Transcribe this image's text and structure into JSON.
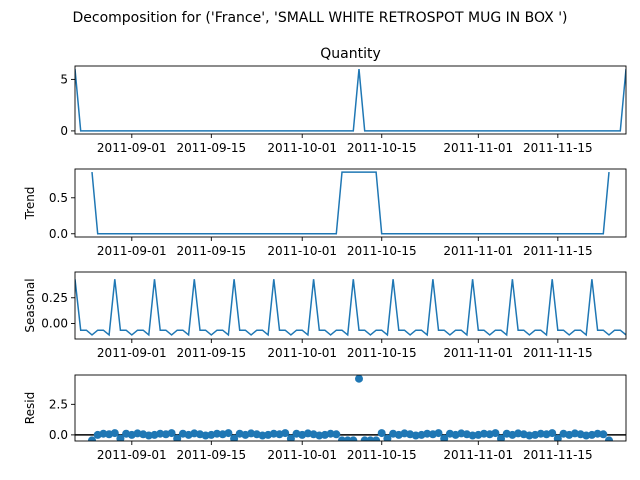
{
  "figure": {
    "title": "Decomposition for ('France', 'SMALL WHITE RETROSPOT MUG IN BOX ')"
  },
  "colors": {
    "series": "#1f77b4",
    "axis": "#000000",
    "background": "#ffffff"
  },
  "chart_data": [
    {
      "type": "line",
      "title": "Quantity",
      "xlabel": "",
      "ylabel": "",
      "x_start": "2011-08-22",
      "x_end": "2011-11-27",
      "xticks": [
        "2011-09-01",
        "2011-09-15",
        "2011-10-01",
        "2011-10-15",
        "2011-11-01",
        "2011-11-15"
      ],
      "ylim": [
        -0.3,
        6.3
      ],
      "yticks": [
        0,
        5
      ],
      "points": [
        {
          "x": "2011-08-22",
          "y": 6
        },
        {
          "x": "2011-08-23",
          "y": 0
        },
        {
          "x": "2011-10-10",
          "y": 0
        },
        {
          "x": "2011-10-11",
          "y": 6
        },
        {
          "x": "2011-10-12",
          "y": 0
        },
        {
          "x": "2011-11-26",
          "y": 0
        },
        {
          "x": "2011-11-27",
          "y": 6
        }
      ]
    },
    {
      "type": "line",
      "title": "",
      "xlabel": "",
      "ylabel": "Trend",
      "x_start": "2011-08-22",
      "x_end": "2011-11-27",
      "xticks": [
        "2011-09-01",
        "2011-09-15",
        "2011-10-01",
        "2011-10-15",
        "2011-11-01",
        "2011-11-15"
      ],
      "ylim": [
        -0.045,
        0.9
      ],
      "yticks": [
        0,
        0.5
      ],
      "ytick_labels": [
        "0.0",
        "0.5"
      ],
      "points": [
        {
          "x": "2011-08-25",
          "y": 0.857
        },
        {
          "x": "2011-08-26",
          "y": 0
        },
        {
          "x": "2011-10-07",
          "y": 0
        },
        {
          "x": "2011-10-08",
          "y": 0.857
        },
        {
          "x": "2011-10-14",
          "y": 0.857
        },
        {
          "x": "2011-10-15",
          "y": 0
        },
        {
          "x": "2011-11-23",
          "y": 0
        },
        {
          "x": "2011-11-24",
          "y": 0.857
        }
      ]
    },
    {
      "type": "line",
      "title": "",
      "xlabel": "",
      "ylabel": "Seasonal",
      "x_start": "2011-08-22",
      "x_end": "2011-11-27",
      "xticks": [
        "2011-09-01",
        "2011-09-15",
        "2011-10-01",
        "2011-10-15",
        "2011-11-01",
        "2011-11-15"
      ],
      "ylim": [
        -0.15,
        0.5
      ],
      "yticks": [
        0,
        0.25
      ],
      "ytick_labels": [
        "0.00",
        "0.25"
      ],
      "period_days": 7,
      "weekly_pattern": [
        0.43,
        -0.065,
        -0.065,
        -0.11,
        -0.065,
        -0.065,
        -0.11
      ]
    },
    {
      "type": "scatter",
      "title": "",
      "xlabel": "",
      "ylabel": "Resid",
      "x_start": "2011-08-22",
      "x_end": "2011-11-27",
      "xticks": [
        "2011-09-01",
        "2011-09-15",
        "2011-10-01",
        "2011-10-15",
        "2011-11-01",
        "2011-11-15"
      ],
      "ylim": [
        -0.5,
        4.9
      ],
      "yticks": [
        0,
        2.5
      ],
      "ytick_labels": [
        "0.0",
        "2.5"
      ],
      "zero_line": true,
      "outliers": [
        {
          "x": "2011-08-25",
          "y": -0.45
        },
        {
          "x": "2011-10-08",
          "y": -0.45
        },
        {
          "x": "2011-10-09",
          "y": -0.45
        },
        {
          "x": "2011-10-10",
          "y": -0.45
        },
        {
          "x": "2011-10-11",
          "y": 4.6
        },
        {
          "x": "2011-10-12",
          "y": -0.45
        },
        {
          "x": "2011-10-13",
          "y": -0.45
        },
        {
          "x": "2011-10-14",
          "y": -0.45
        },
        {
          "x": "2011-11-24",
          "y": -0.45
        }
      ],
      "base_pattern": [
        0.0,
        0.1,
        0.05,
        0.15,
        -0.3,
        0.1,
        0.0,
        0.12,
        0.05,
        -0.05
      ]
    }
  ]
}
